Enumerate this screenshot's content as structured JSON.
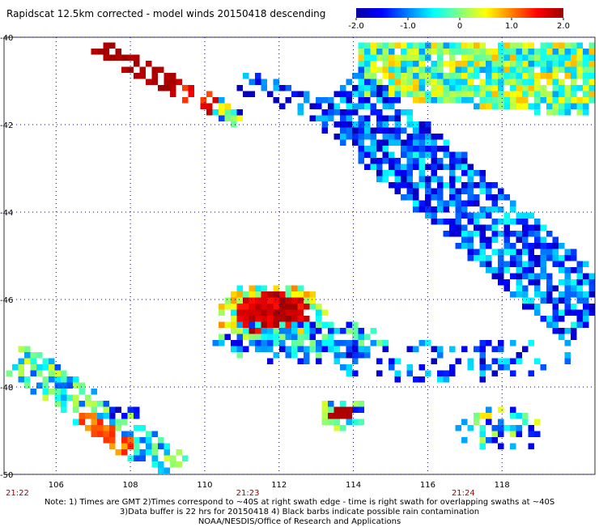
{
  "title": "Rapidscat 12.5km corrected - model winds 20150418 descending",
  "colorbar": {
    "tick_labels": [
      "-2.0",
      "-1.0",
      "0",
      "1.0",
      "2.0"
    ],
    "tick_values": [
      -2.0,
      -1.0,
      0,
      1.0,
      2.0
    ],
    "range": [
      -2.0,
      2.0
    ],
    "colors": [
      "#0a00a0",
      "#0000ff",
      "#0080ff",
      "#00ffff",
      "#80ff80",
      "#ffff00",
      "#ff8000",
      "#ff0000",
      "#9a0000"
    ]
  },
  "map": {
    "lon_range": [
      104.6,
      120.5
    ],
    "lat_range": [
      -50.0,
      -40.0
    ],
    "x_ticks": [
      "106",
      "108",
      "110",
      "112",
      "114",
      "116",
      "118"
    ],
    "x_tick_values": [
      106,
      108,
      110,
      112,
      114,
      116,
      118
    ],
    "y_ticks": [
      "-40",
      "-42",
      "-44",
      "-46",
      "-48",
      "-50"
    ],
    "y_tick_values": [
      -40,
      -42,
      -44,
      -46,
      -48,
      -50
    ],
    "grid": "dotted",
    "times": [
      {
        "label": "21:22",
        "lon": 104.6
      },
      {
        "label": "21:23",
        "lon": 110.8
      },
      {
        "label": "21:24",
        "lon": 116.6
      }
    ],
    "time_color": "#9a0000"
  },
  "notes": [
    "Note: 1) Times are GMT 2)Times correspond to ~40S at right swath edge - time is right swath for overlapping swaths at ~40S",
    "3)Data buffer is 22 hrs for 20150418 4) Black barbs indicate possible rain contamination",
    "NOAA/NESDIS/Office of Research and Applications"
  ]
}
